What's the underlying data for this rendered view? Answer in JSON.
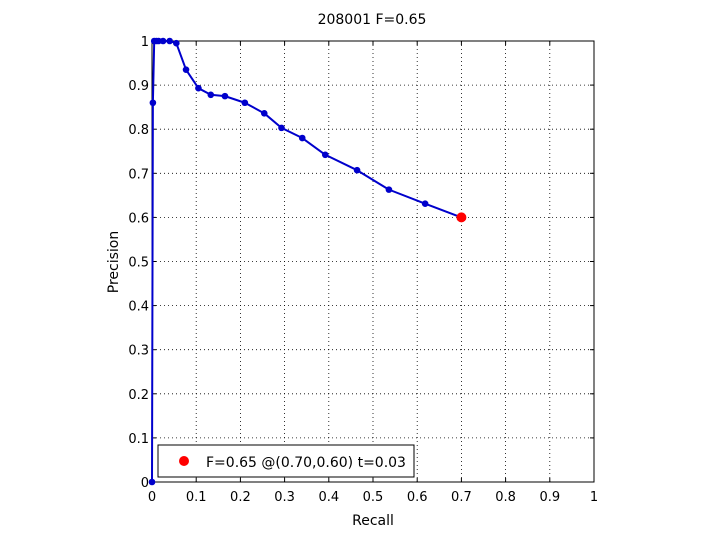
{
  "chart_data": {
    "type": "line",
    "title": "208001 F=0.65",
    "xlabel": "Recall",
    "ylabel": "Precision",
    "xlim": [
      0,
      1
    ],
    "ylim": [
      0,
      1
    ],
    "grid": true,
    "legend_placement": "bottom-left",
    "xticks": [
      "0",
      "0.1",
      "0.2",
      "0.3",
      "0.4",
      "0.5",
      "0.6",
      "0.7",
      "0.8",
      "0.9",
      "1"
    ],
    "yticks": [
      "0",
      "0.1",
      "0.2",
      "0.3",
      "0.4",
      "0.5",
      "0.6",
      "0.7",
      "0.8",
      "0.9",
      "1"
    ],
    "series": [
      {
        "color": "#0000cc",
        "x": [
          0,
          0.002,
          0.005,
          0.01,
          0.015,
          0.025,
          0.04,
          0.055,
          0.077,
          0.105,
          0.133,
          0.165,
          0.21,
          0.254,
          0.293,
          0.34,
          0.392,
          0.464,
          0.536,
          0.618,
          0.7
        ],
        "y": [
          0,
          0.86,
          1.0,
          1.0,
          1.0,
          1.0,
          1.0,
          0.995,
          0.935,
          0.893,
          0.878,
          0.875,
          0.86,
          0.836,
          0.803,
          0.78,
          0.742,
          0.707,
          0.663,
          0.631,
          0.6
        ]
      }
    ],
    "highlight": {
      "x": 0.7,
      "y": 0.6,
      "color": "#ff0000"
    },
    "legend": {
      "label": "F=0.65 @(0.70,0.60) t=0.03"
    }
  }
}
